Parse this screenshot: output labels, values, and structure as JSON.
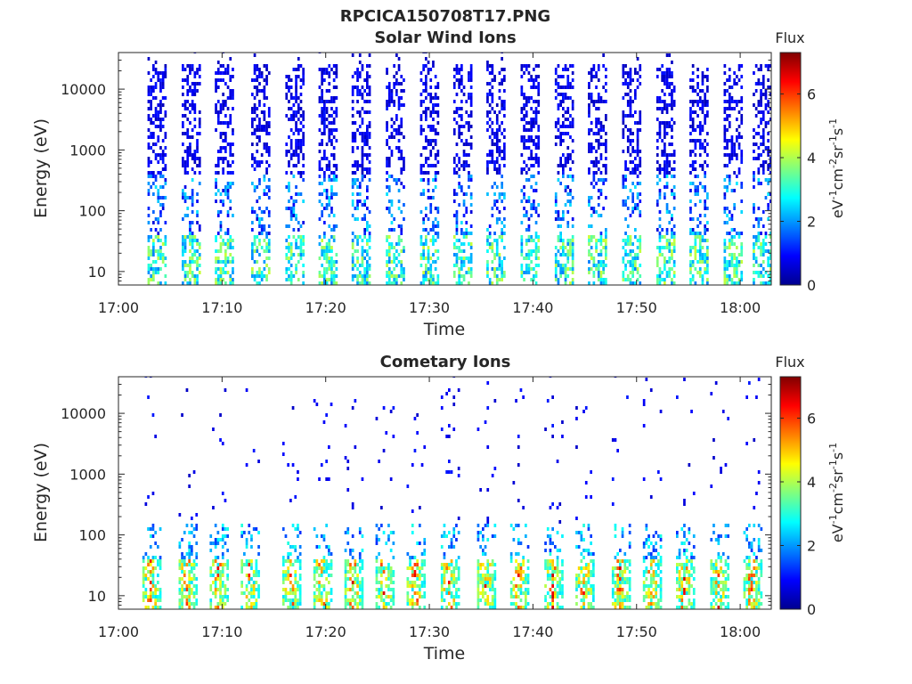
{
  "figure": {
    "title": "RPCICA150708T17.PNG"
  },
  "panels": [
    {
      "title": "Solar Wind Ions",
      "xlabel": "Time",
      "ylabel": "Energy (eV)",
      "colorbar_title": "Flux",
      "colorbar_label": "eV-1cm-2sr-1s-1"
    },
    {
      "title": "Cometary Ions",
      "xlabel": "Time",
      "ylabel": "Energy (eV)",
      "colorbar_title": "Flux",
      "colorbar_label": "eV-1cm-2sr-1s-1"
    }
  ],
  "chart_data": [
    {
      "type": "heatmap",
      "title": "Solar Wind Ions",
      "xlabel": "Time",
      "ylabel": "Energy (eV)",
      "x_ticks": [
        "17:00",
        "17:10",
        "17:20",
        "17:30",
        "17:40",
        "17:50",
        "18:00"
      ],
      "y_ticks": [
        "10",
        "100",
        "1000",
        "10000"
      ],
      "y_scale": "log",
      "ylim": [
        6,
        40000
      ],
      "xlim": [
        "17:00",
        "18:03"
      ],
      "colorbar": {
        "title": "Flux",
        "ticks": [
          "0",
          "2",
          "4",
          "6"
        ],
        "range": [
          0,
          7.3
        ],
        "colormap": "jet"
      },
      "sweep_times_min": [
        3.5,
        6.8,
        10.0,
        13.5,
        16.8,
        20.0,
        23.2,
        26.5,
        29.8,
        33.0,
        36.2,
        39.5,
        42.8,
        46.0,
        49.3,
        52.6,
        55.8,
        59.1,
        61.9
      ],
      "dominant_flux_at_20eV": 3.5,
      "dominant_flux_above_100eV": 0.8,
      "grid": false
    },
    {
      "type": "heatmap",
      "title": "Cometary Ions",
      "xlabel": "Time",
      "ylabel": "Energy (eV)",
      "x_ticks": [
        "17:00",
        "17:10",
        "17:20",
        "17:30",
        "17:40",
        "17:50",
        "18:00"
      ],
      "y_ticks": [
        "10",
        "100",
        "1000",
        "10000"
      ],
      "y_scale": "log",
      "ylim": [
        6,
        40000
      ],
      "xlim": [
        "17:00",
        "18:03"
      ],
      "colorbar": {
        "title": "Flux",
        "ticks": [
          "0",
          "2",
          "4",
          "6"
        ],
        "range": [
          0,
          7.3
        ],
        "colormap": "jet"
      },
      "sweep_times_min": [
        3.0,
        6.5,
        9.5,
        12.5,
        16.5,
        19.5,
        22.5,
        25.5,
        28.5,
        31.8,
        35.3,
        38.5,
        41.8,
        44.8,
        48.3,
        51.3,
        54.5,
        57.8,
        61.0
      ],
      "peak_flux_at_20eV": 6.8,
      "grid": false
    }
  ]
}
